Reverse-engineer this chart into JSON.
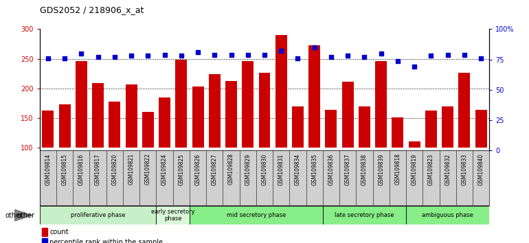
{
  "title": "GDS2052 / 218906_x_at",
  "samples": [
    "GSM109814",
    "GSM109815",
    "GSM109816",
    "GSM109817",
    "GSM109820",
    "GSM109821",
    "GSM109822",
    "GSM109824",
    "GSM109825",
    "GSM109826",
    "GSM109827",
    "GSM109828",
    "GSM109829",
    "GSM109830",
    "GSM109831",
    "GSM109834",
    "GSM109835",
    "GSM109836",
    "GSM109837",
    "GSM109838",
    "GSM109839",
    "GSM109818",
    "GSM109819",
    "GSM109823",
    "GSM109832",
    "GSM109833",
    "GSM109840"
  ],
  "counts": [
    163,
    173,
    246,
    209,
    178,
    207,
    160,
    185,
    248,
    203,
    224,
    213,
    246,
    226,
    290,
    170,
    273,
    164,
    211,
    170,
    246,
    151,
    111,
    163,
    170,
    226,
    164
  ],
  "percentiles": [
    76,
    76,
    80,
    77,
    77,
    78,
    78,
    79,
    78,
    81,
    79,
    79,
    79,
    79,
    82,
    76,
    85,
    77,
    78,
    77,
    80,
    74,
    69,
    78,
    79,
    79,
    76
  ],
  "phases": [
    {
      "name": "proliferative phase",
      "start": 0,
      "end": 7,
      "color": "#c8f0c8"
    },
    {
      "name": "early secretory\nphase",
      "start": 7,
      "end": 9,
      "color": "#d8f8d8"
    },
    {
      "name": "mid secretory phase",
      "start": 9,
      "end": 17,
      "color": "#88ee88"
    },
    {
      "name": "late secretory phase",
      "start": 17,
      "end": 22,
      "color": "#88ee88"
    },
    {
      "name": "ambiguous phase",
      "start": 22,
      "end": 27,
      "color": "#88ee88"
    }
  ],
  "ylim_left": [
    95,
    300
  ],
  "ylim_right": [
    0,
    100
  ],
  "bar_color": "#cc0000",
  "dot_color": "#0000cc",
  "plot_bg": "#ffffff",
  "tick_bg": "#d0d0d0",
  "yticks_left": [
    100,
    150,
    200,
    250,
    300
  ],
  "yticks_right": [
    0,
    25,
    50,
    75,
    100
  ],
  "hlines": [
    150,
    200,
    250
  ],
  "legend_count": "count",
  "legend_pct": "percentile rank within the sample",
  "bar_bottom": 100
}
